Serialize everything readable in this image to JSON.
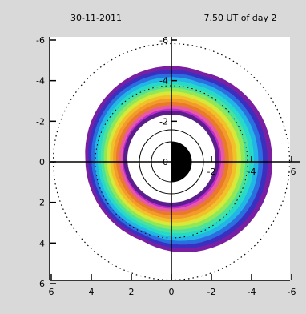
{
  "chart_data": {
    "type": "polar-spectrogram",
    "header": {
      "date": "30-11-2011",
      "time": "7.50 UT of day 2"
    },
    "x_range": [
      6,
      -6
    ],
    "y_range": [
      6,
      -6
    ],
    "x_tick_labels": [
      "6",
      "4",
      "2",
      "0",
      "-2",
      "-4",
      "-6"
    ],
    "x_tick_values": [
      6,
      4,
      2,
      0,
      -2,
      -4,
      -6
    ],
    "left_tick_labels": [
      "-6",
      "-4",
      "-2",
      "0",
      "2",
      "4",
      "6"
    ],
    "left_tick_values": [
      -6,
      -4,
      -2,
      0,
      2,
      4,
      6
    ],
    "inner_y_tick_labels": [
      "-6",
      "-4",
      "-2",
      "0"
    ],
    "inner_y_tick_values": [
      -6,
      -4,
      -2,
      0
    ],
    "inner_x_tick_labels": [
      "-2",
      "-4",
      "-6"
    ],
    "inner_x_tick_values": [
      -2,
      -4,
      -6
    ],
    "earth_radius": 1,
    "inner_ring_radius": 1.6,
    "dotted_circle_radius": 5.9,
    "dotted_circle_small_radius": 3.8,
    "band": {
      "inner_radius": 2.3,
      "outer_radius_ref": 4.3,
      "colors": [
        "#7a1fa2",
        "#3b2fbf",
        "#2a6fe0",
        "#22b5e6",
        "#27d9c8",
        "#4de29a",
        "#8ee85a",
        "#d6e83a",
        "#f2c12a",
        "#f29a2a",
        "#e87a2a",
        "#e85aa0",
        "#c02ad6"
      ]
    },
    "grid": false
  }
}
